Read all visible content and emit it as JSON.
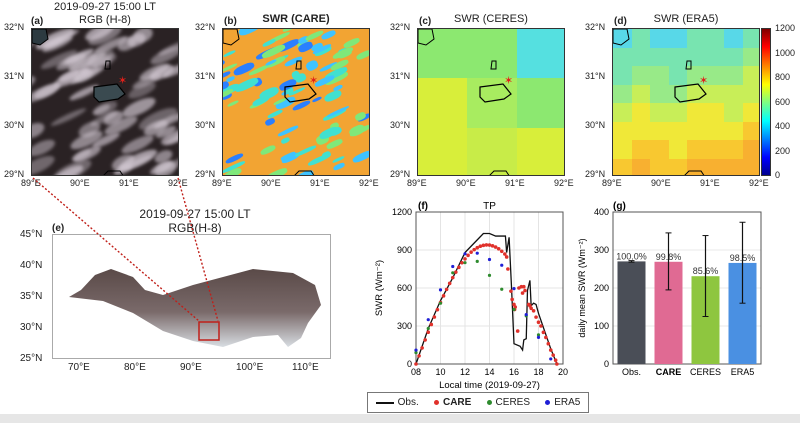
{
  "panel_a": {
    "label": "(a)",
    "title1": "2019-09-27 15:00 LT",
    "title2": "RGB (H-8)"
  },
  "panel_b": {
    "label": "(b)",
    "title": "SWR (CARE)"
  },
  "panel_c": {
    "label": "(c)",
    "title": "SWR (CERES)"
  },
  "panel_d": {
    "label": "(d)",
    "title": "SWR (ERA5)"
  },
  "map_yticks": [
    "32°N",
    "31°N",
    "30°N",
    "29°N"
  ],
  "map_xticks": [
    "89°E",
    "90°E",
    "91°E",
    "92°E"
  ],
  "colorbar": {
    "ticks": [
      "1200",
      "1000",
      "800",
      "600",
      "400",
      "200",
      "0"
    ]
  },
  "panel_e": {
    "label": "(e)",
    "title1": "2019-09-27 15:00 LT",
    "title2": "RGB(H-8)",
    "yticks": [
      "45°N",
      "40°N",
      "35°N",
      "30°N",
      "25°N"
    ],
    "xticks": [
      "70°E",
      "80°E",
      "90°E",
      "100°E",
      "110°E"
    ]
  },
  "colors": {
    "obs": "#111111",
    "care": "#e0312b",
    "ceres": "#2e8b2e",
    "era5": "#1f1fd6"
  },
  "chart_data": [
    {
      "type": "line",
      "label": "(f)",
      "title": "TP",
      "xlabel": "Local time (2019-09-27)",
      "ylabel": "SWR (Wm⁻²)",
      "xlim": [
        8,
        20
      ],
      "ylim": [
        0,
        1200
      ],
      "xticks": [
        "08",
        "10",
        "12",
        "14",
        "16",
        "18",
        "20"
      ],
      "yticks": [
        "0",
        "300",
        "600",
        "900",
        "1200"
      ],
      "series": [
        {
          "name": "Obs.",
          "kind": "line",
          "x": [
            8,
            9,
            10,
            11,
            12,
            13,
            13.5,
            14,
            14.5,
            15,
            15.3,
            15.4,
            15.6,
            15.8,
            16,
            16.5,
            16.7,
            16.8,
            17,
            17.1,
            17.3,
            17.4,
            17.6,
            17.8,
            18,
            18.5,
            19,
            19.5
          ],
          "y": [
            0,
            280,
            500,
            680,
            880,
            980,
            1030,
            1030,
            1010,
            1010,
            1010,
            880,
            1000,
            600,
            160,
            140,
            110,
            190,
            200,
            580,
            660,
            460,
            480,
            470,
            400,
            260,
            120,
            0
          ]
        },
        {
          "name": "CARE",
          "kind": "dots",
          "x": [
            8,
            8.25,
            8.5,
            8.75,
            9,
            9.25,
            9.5,
            9.75,
            10,
            10.25,
            10.5,
            10.75,
            11,
            11.25,
            11.5,
            11.75,
            12,
            12.25,
            12.5,
            12.75,
            13,
            13.25,
            13.5,
            13.75,
            14,
            14.25,
            14.5,
            14.75,
            15,
            15.25,
            15.4,
            15.5,
            15.75,
            15.85,
            16,
            16.05,
            16.1,
            16.3,
            16.4,
            16.6,
            16.7,
            16.8,
            16.9,
            17.2,
            17.3,
            17.4,
            17.6,
            17.8,
            18,
            18.2,
            18.4,
            18.6,
            18.8,
            19,
            19.2,
            19.4,
            19.5
          ],
          "y": [
            0,
            64,
            127,
            190,
            251,
            312,
            371,
            429,
            485,
            538,
            589,
            637,
            682,
            725,
            763,
            799,
            830,
            858,
            883,
            903,
            918,
            930,
            937,
            940,
            939,
            933,
            923,
            909,
            890,
            868,
            845,
            750,
            575,
            510,
            470,
            430,
            450,
            260,
            600,
            610,
            560,
            610,
            580,
            470,
            460,
            440,
            420,
            370,
            330,
            300,
            250,
            210,
            160,
            110,
            70,
            30,
            0
          ]
        },
        {
          "name": "CERES",
          "kind": "dots",
          "x": [
            8,
            9,
            10,
            11,
            12,
            13,
            14,
            15,
            16,
            17,
            18
          ],
          "y": [
            90,
            280,
            480,
            720,
            800,
            810,
            700,
            590,
            430,
            380,
            230
          ]
        },
        {
          "name": "ERA5",
          "kind": "dots",
          "x": [
            8,
            9,
            10,
            11,
            12,
            13,
            14,
            15,
            16,
            17,
            18,
            19
          ],
          "y": [
            110,
            350,
            585,
            770,
            870,
            875,
            825,
            780,
            595,
            390,
            210,
            40
          ]
        }
      ]
    },
    {
      "type": "bar",
      "label": "(g)",
      "ylabel": "daily mean SWR (Wm⁻²)",
      "ylim": [
        0,
        400
      ],
      "yticks": [
        "0",
        "100",
        "200",
        "300",
        "400"
      ],
      "categories": [
        "Obs.",
        "CARE",
        "CERES",
        "ERA5"
      ],
      "values": [
        270,
        269,
        231,
        266
      ],
      "err_low": [
        268,
        195,
        125,
        160
      ],
      "err_high": [
        272,
        345,
        338,
        373
      ],
      "labels": [
        "100.0%",
        "99.8%",
        "85.6%",
        "98.5%"
      ],
      "bar_colors": [
        "#4a4e57",
        "#e06a93",
        "#8ec63f",
        "#4a90e2"
      ]
    }
  ],
  "legend": [
    "Obs.",
    "CARE",
    "CERES",
    "ERA5"
  ]
}
